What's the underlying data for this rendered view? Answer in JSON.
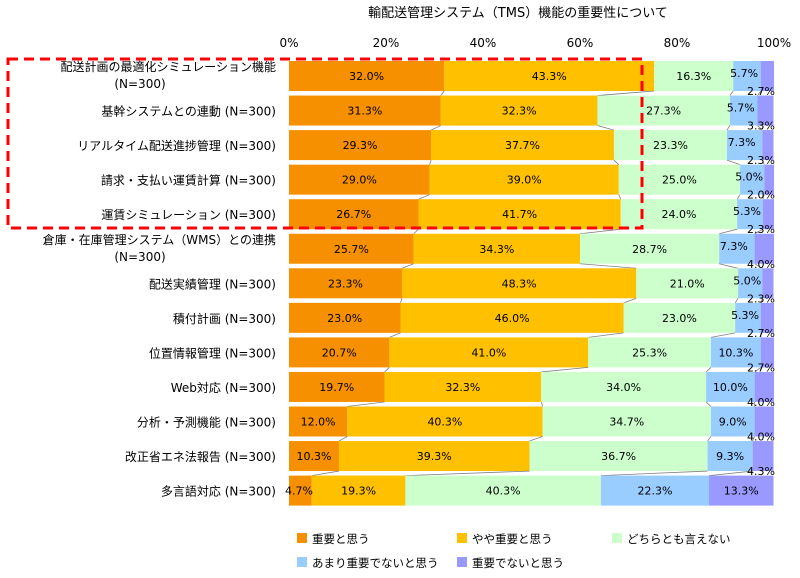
{
  "chart_data": {
    "type": "bar",
    "stacked": true,
    "orientation": "horizontal",
    "title": "輸配送管理システム（TMS）機能の重要性について",
    "xlim": [
      0,
      100
    ],
    "ticks": [
      "0%",
      "20%",
      "40%",
      "60%",
      "80%",
      "100%"
    ],
    "categories": [
      [
        "配送計画の最適化シミュレーション機能",
        "(N=300)"
      ],
      [
        "基幹システムとの連動 (N=300)"
      ],
      [
        "リアルタイム配送進捗管理 (N=300)"
      ],
      [
        "請求・支払い運賃計算 (N=300)"
      ],
      [
        "運賃シミュレーション (N=300)"
      ],
      [
        "倉庫・在庫管理システム（WMS）との連携",
        "(N=300)"
      ],
      [
        "配送実績管理 (N=300)"
      ],
      [
        "積付計画 (N=300)"
      ],
      [
        "位置情報管理 (N=300)"
      ],
      [
        "Web対応 (N=300)"
      ],
      [
        "分析・予測機能 (N=300)"
      ],
      [
        "改正省エネ法報告 (N=300)"
      ],
      [
        "多言語対応 (N=300)"
      ]
    ],
    "series": [
      {
        "name": "重要と思う",
        "color": "#f79000",
        "values": [
          32.0,
          31.3,
          29.3,
          29.0,
          26.7,
          25.7,
          23.3,
          23.0,
          20.7,
          19.7,
          12.0,
          10.3,
          4.7
        ]
      },
      {
        "name": "やや重要と思う",
        "color": "#ffc000",
        "values": [
          43.3,
          32.3,
          37.7,
          39.0,
          41.7,
          34.3,
          48.3,
          46.0,
          41.0,
          32.3,
          40.3,
          39.3,
          19.3
        ]
      },
      {
        "name": "どちらとも言えない",
        "color": "#ccffcc",
        "values": [
          16.3,
          27.3,
          23.3,
          25.0,
          24.0,
          28.7,
          21.0,
          23.0,
          25.3,
          34.0,
          34.7,
          36.7,
          40.3
        ]
      },
      {
        "name": "あまり重要でないと思う",
        "color": "#99ccff",
        "values": [
          5.7,
          5.7,
          7.3,
          5.0,
          5.3,
          7.3,
          5.0,
          5.3,
          10.3,
          10.0,
          9.0,
          9.3,
          22.3
        ]
      },
      {
        "name": "重要でないと思う",
        "color": "#9999ff",
        "values": [
          2.7,
          3.3,
          2.3,
          2.0,
          2.3,
          4.0,
          2.3,
          2.7,
          2.7,
          4.0,
          4.0,
          4.3,
          13.3
        ]
      }
    ],
    "highlight_rows": [
      0,
      4
    ],
    "legend_position": "bottom",
    "grid": false
  }
}
